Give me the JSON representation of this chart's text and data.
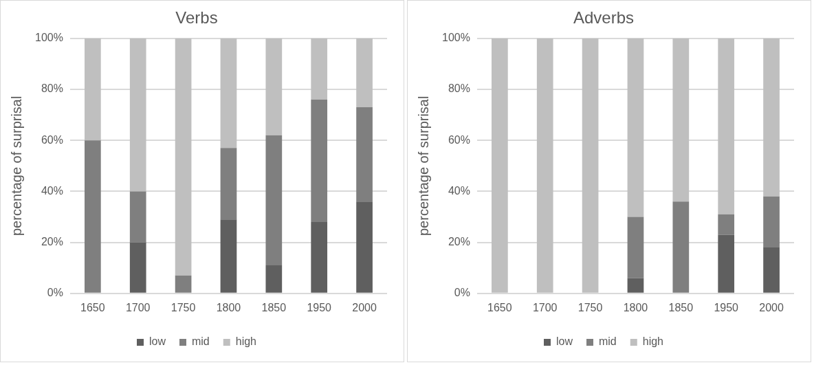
{
  "chart_data": [
    {
      "type": "bar",
      "title": "Verbs",
      "ylabel": "percentage of surprisal",
      "categories": [
        "1650",
        "1700",
        "1750",
        "1800",
        "1850",
        "1950",
        "2000"
      ],
      "stacked": true,
      "ylim": [
        0,
        100
      ],
      "yticks": [
        {
          "value": 0,
          "label": "0%"
        },
        {
          "value": 20,
          "label": "20%"
        },
        {
          "value": 40,
          "label": "40%"
        },
        {
          "value": 60,
          "label": "60%"
        },
        {
          "value": 80,
          "label": "80%"
        },
        {
          "value": 100,
          "label": "100%"
        }
      ],
      "grid": "y",
      "legend": "bottom",
      "series": [
        {
          "name": "low",
          "color": "#5f5f5f",
          "values": [
            0,
            20,
            0,
            29,
            11,
            28,
            36
          ]
        },
        {
          "name": "mid",
          "color": "#7f7f7f",
          "values": [
            60,
            20,
            7,
            28,
            51,
            48,
            37
          ]
        },
        {
          "name": "high",
          "color": "#bfbfbf",
          "values": [
            40,
            60,
            93,
            43,
            38,
            24,
            27
          ]
        }
      ]
    },
    {
      "type": "bar",
      "title": "Adverbs",
      "ylabel": "percentage of surprisal",
      "categories": [
        "1650",
        "1700",
        "1750",
        "1800",
        "1850",
        "1950",
        "2000"
      ],
      "stacked": true,
      "ylim": [
        0,
        100
      ],
      "yticks": [
        {
          "value": 0,
          "label": "0%"
        },
        {
          "value": 20,
          "label": "20%"
        },
        {
          "value": 40,
          "label": "40%"
        },
        {
          "value": 60,
          "label": "60%"
        },
        {
          "value": 80,
          "label": "80%"
        },
        {
          "value": 100,
          "label": "100%"
        }
      ],
      "grid": "y",
      "legend": "bottom",
      "series": [
        {
          "name": "low",
          "color": "#5f5f5f",
          "values": [
            0,
            0,
            0,
            6,
            0,
            23,
            18
          ]
        },
        {
          "name": "mid",
          "color": "#7f7f7f",
          "values": [
            0,
            0,
            0,
            24,
            36,
            8,
            20
          ]
        },
        {
          "name": "high",
          "color": "#bfbfbf",
          "values": [
            100,
            100,
            100,
            70,
            64,
            69,
            62
          ]
        }
      ]
    }
  ]
}
